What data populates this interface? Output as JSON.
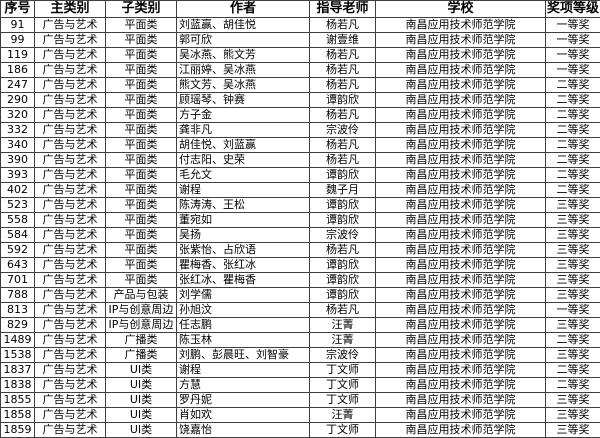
{
  "colors": {
    "border": "#3f3f3f",
    "text": "#000000",
    "background": "#ffffff"
  },
  "table": {
    "columns": [
      "序号",
      "主类别",
      "子类别",
      "作者",
      "指导老师",
      "学校",
      "奖项等级"
    ],
    "rows": [
      [
        "91",
        "广告与艺术",
        "平面类",
        "刘蓝赢、胡佳悦",
        "杨若凡",
        "南昌应用技术师范学院",
        "一等奖"
      ],
      [
        "99",
        "广告与艺术",
        "平面类",
        "郭可欣",
        "谢壹维",
        "南昌应用技术师范学院",
        "一等奖"
      ],
      [
        "119",
        "广告与艺术",
        "平面类",
        "吴冰燕、熊文芳",
        "杨若凡",
        "南昌应用技术师范学院",
        "一等奖"
      ],
      [
        "186",
        "广告与艺术",
        "平面类",
        "江丽婷、吴冰燕",
        "杨若凡",
        "南昌应用技术师范学院",
        "一等奖"
      ],
      [
        "247",
        "广告与艺术",
        "平面类",
        "熊文芳、吴冰燕",
        "杨若凡",
        "南昌应用技术师范学院",
        "二等奖"
      ],
      [
        "290",
        "广告与艺术",
        "平面类",
        "顾瑶琴、钟赛",
        "谭韵欣",
        "南昌应用技术师范学院",
        "二等奖"
      ],
      [
        "320",
        "广告与艺术",
        "平面类",
        "方子金",
        "杨若凡",
        "南昌应用技术师范学院",
        "二等奖"
      ],
      [
        "332",
        "广告与艺术",
        "平面类",
        "龚非凡",
        "宗波伶",
        "南昌应用技术师范学院",
        "二等奖"
      ],
      [
        "340",
        "广告与艺术",
        "平面类",
        "胡佳悦、刘蓝赢",
        "杨若凡",
        "南昌应用技术师范学院",
        "二等奖"
      ],
      [
        "390",
        "广告与艺术",
        "平面类",
        "付志阳、史荣",
        "杨若凡",
        "南昌应用技术师范学院",
        "二等奖"
      ],
      [
        "393",
        "广告与艺术",
        "平面类",
        "毛允文",
        "谭韵欣",
        "南昌应用技术师范学院",
        "二等奖"
      ],
      [
        "402",
        "广告与艺术",
        "平面类",
        "谢程",
        "魏子月",
        "南昌应用技术师范学院",
        "二等奖"
      ],
      [
        "523",
        "广告与艺术",
        "平面类",
        "陈涛涛、王松",
        "谭韵欣",
        "南昌应用技术师范学院",
        "三等奖"
      ],
      [
        "558",
        "广告与艺术",
        "平面类",
        "董宛如",
        "谭韵欣",
        "南昌应用技术师范学院",
        "三等奖"
      ],
      [
        "584",
        "广告与艺术",
        "平面类",
        "吴扬",
        "宗波伶",
        "南昌应用技术师范学院",
        "三等奖"
      ],
      [
        "592",
        "广告与艺术",
        "平面类",
        "张紫怡、占欣语",
        "杨若凡",
        "南昌应用技术师范学院",
        "三等奖"
      ],
      [
        "643",
        "广告与艺术",
        "平面类",
        "瞿梅香、张红冰",
        "谭韵欣",
        "南昌应用技术师范学院",
        "三等奖"
      ],
      [
        "701",
        "广告与艺术",
        "平面类",
        "张红冰、瞿梅香",
        "谭韵欣",
        "南昌应用技术师范学院",
        "三等奖"
      ],
      [
        "788",
        "广告与艺术",
        "产品与包装",
        "刘学儒",
        "谭韵欣",
        "南昌应用技术师范学院",
        "三等奖"
      ],
      [
        "813",
        "广告与艺术",
        "IP与创意周边",
        "孙旭汶",
        "杨若凡",
        "南昌应用技术师范学院",
        "一等奖"
      ],
      [
        "829",
        "广告与艺术",
        "IP与创意周边",
        "任志鹏",
        "汪菁",
        "南昌应用技术师范学院",
        "三等奖"
      ],
      [
        "1489",
        "广告与艺术",
        "广播类",
        "陈玉林",
        "汪菁",
        "南昌应用技术师范学院",
        "二等奖"
      ],
      [
        "1538",
        "广告与艺术",
        "广播类",
        "刘鹏、彭晨旺、刘智豪",
        "宗波伶",
        "南昌应用技术师范学院",
        "三等奖"
      ],
      [
        "1837",
        "广告与艺术",
        "UI类",
        "谢程",
        "丁文师",
        "南昌应用技术师范学院",
        "二等奖"
      ],
      [
        "1838",
        "广告与艺术",
        "UI类",
        "方慧",
        "丁文师",
        "南昌应用技术师范学院",
        "二等奖"
      ],
      [
        "1855",
        "广告与艺术",
        "UI类",
        "罗丹妮",
        "丁文师",
        "南昌应用技术师范学院",
        "三等奖"
      ],
      [
        "1858",
        "广告与艺术",
        "UI类",
        "肖如欢",
        "汪菁",
        "南昌应用技术师范学院",
        "三等奖"
      ],
      [
        "1859",
        "广告与艺术",
        "UI类",
        "饶嘉怡",
        "丁文师",
        "南昌应用技术师范学院",
        "三等奖"
      ]
    ]
  }
}
